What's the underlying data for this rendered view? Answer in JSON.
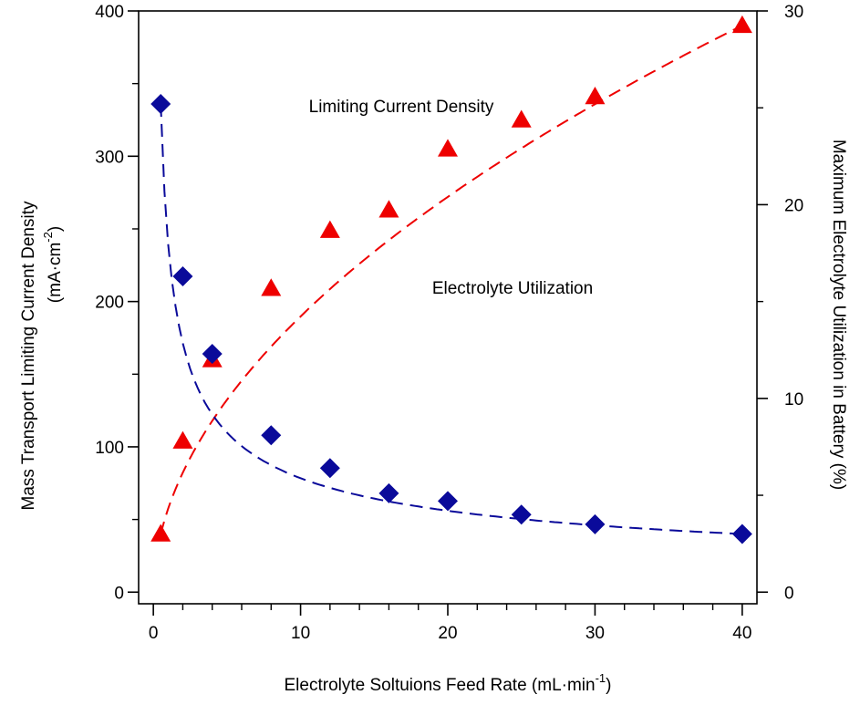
{
  "chart_data": {
    "type": "scatter",
    "xlabel": "Electrolyte Soltuions Feed Rate (mL·min",
    "xlabel_sup": "-1",
    "xlabel_end": ")",
    "ylabel_left_line1": "Mass Transport Limiting Current Density",
    "ylabel_left_line2": "(mA·cm",
    "ylabel_left_sup": "-2",
    "ylabel_left_end": ")",
    "ylabel_right": "Maximum Electrolyte Utilization in Battery (%)",
    "xlim": [
      -1,
      41
    ],
    "ylim_left": [
      -8,
      400
    ],
    "ylim_right": [
      -0.6,
      30
    ],
    "xticks": [
      0,
      10,
      20,
      30,
      40
    ],
    "xticks_minor": [
      2,
      4,
      6,
      8,
      12,
      14,
      16,
      18,
      22,
      24,
      26,
      28,
      32,
      34,
      36,
      38
    ],
    "yticks_left": [
      0,
      100,
      200,
      300,
      400
    ],
    "yticks_right": [
      0,
      10,
      20,
      30
    ],
    "annotations": {
      "limiting": "Limiting Current Density",
      "utilization": "Electrolyte Utilization"
    },
    "series": [
      {
        "name": "Limiting Current Density",
        "axis": "left",
        "marker": "triangle",
        "color": "#ee0000",
        "x": [
          0.5,
          2,
          4,
          8,
          12,
          16,
          20,
          25,
          30,
          40
        ],
        "y": [
          40,
          104,
          160,
          209,
          249,
          263,
          305,
          325,
          341,
          390
        ]
      },
      {
        "name": "Electrolyte Utilization",
        "axis": "right",
        "marker": "diamond",
        "color": "#0a0a9a",
        "x": [
          0.5,
          2,
          4,
          8,
          12,
          16,
          20,
          25,
          30,
          40
        ],
        "y": [
          25.2,
          16.3,
          12.3,
          8.1,
          6.4,
          5.1,
          4.7,
          4.0,
          3.5,
          3.0
        ]
      }
    ]
  }
}
